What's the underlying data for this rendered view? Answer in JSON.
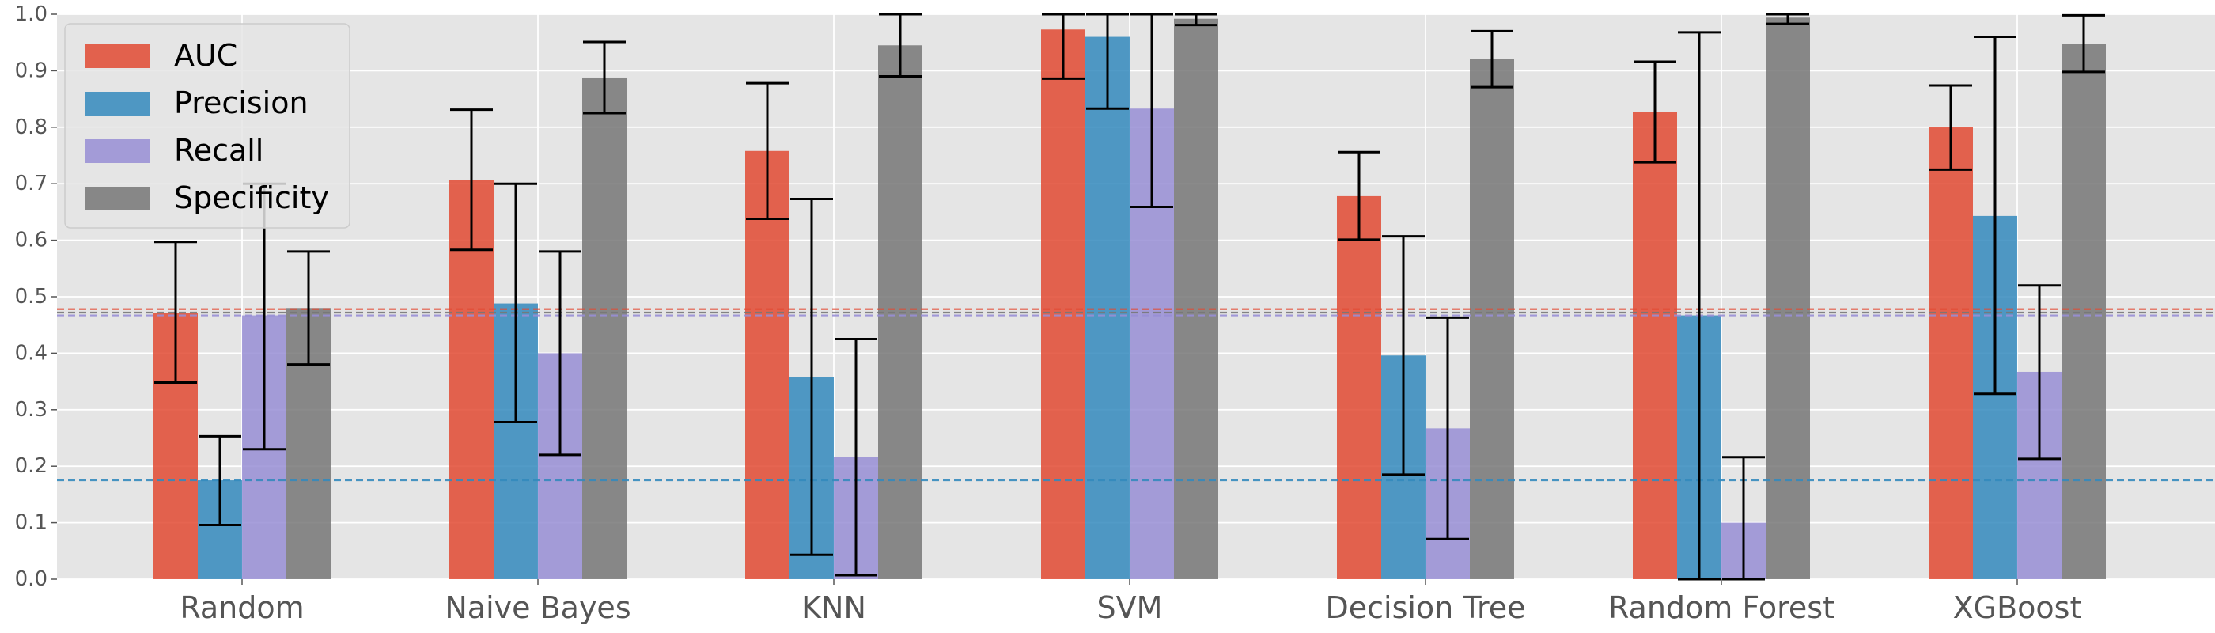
{
  "chart_data": {
    "type": "bar",
    "categories": [
      "Random",
      "Naive Bayes",
      "KNN",
      "SVM",
      "Decision Tree",
      "Random Forest",
      "XGBoost"
    ],
    "series": [
      {
        "name": "AUC",
        "color": "#e24a33",
        "values": [
          0.472,
          0.707,
          0.758,
          0.973,
          0.678,
          0.827,
          0.8
        ],
        "err_low": [
          0.348,
          0.583,
          0.638,
          0.886,
          0.601,
          0.738,
          0.725
        ],
        "err_high": [
          0.597,
          0.831,
          0.878,
          1.0,
          0.756,
          0.916,
          0.874
        ]
      },
      {
        "name": "Precision",
        "color": "#348abd",
        "values": [
          0.175,
          0.488,
          0.358,
          0.96,
          0.396,
          0.467,
          0.643
        ],
        "err_low": [
          0.096,
          0.278,
          0.043,
          0.833,
          0.185,
          0.0,
          0.328
        ],
        "err_high": [
          0.253,
          0.7,
          0.673,
          1.0,
          0.607,
          0.968,
          0.96
        ]
      },
      {
        "name": "Recall",
        "color": "#988ed5",
        "values": [
          0.467,
          0.4,
          0.217,
          0.833,
          0.267,
          0.1,
          0.367
        ],
        "err_low": [
          0.23,
          0.22,
          0.007,
          0.659,
          0.071,
          0.0,
          0.213
        ],
        "err_high": [
          0.7,
          0.58,
          0.425,
          1.0,
          0.463,
          0.216,
          0.52
        ]
      },
      {
        "name": "Specificity",
        "color": "#777777",
        "values": [
          0.48,
          0.888,
          0.945,
          0.992,
          0.921,
          0.994,
          0.948
        ],
        "err_low": [
          0.38,
          0.825,
          0.89,
          0.981,
          0.871,
          0.983,
          0.898
        ],
        "err_high": [
          0.58,
          0.951,
          1.0,
          1.0,
          0.97,
          1.0,
          0.998
        ]
      }
    ],
    "reference_lines": [
      {
        "series": "AUC",
        "value": 0.478,
        "color": "#e24a33"
      },
      {
        "series": "Precision",
        "value": 0.175,
        "color": "#348abd"
      },
      {
        "series": "Recall",
        "value": 0.467,
        "color": "#988ed5"
      },
      {
        "series": "Specificity",
        "value": 0.472,
        "color": "#777777"
      }
    ],
    "yticks": [
      "0.0",
      "0.1",
      "0.2",
      "0.3",
      "0.4",
      "0.5",
      "0.6",
      "0.7",
      "0.8",
      "0.9",
      "1.0"
    ],
    "ylim": [
      0,
      1
    ],
    "title": "",
    "xlabel": "",
    "ylabel": "",
    "grid": true,
    "legend_position": "top-left"
  }
}
